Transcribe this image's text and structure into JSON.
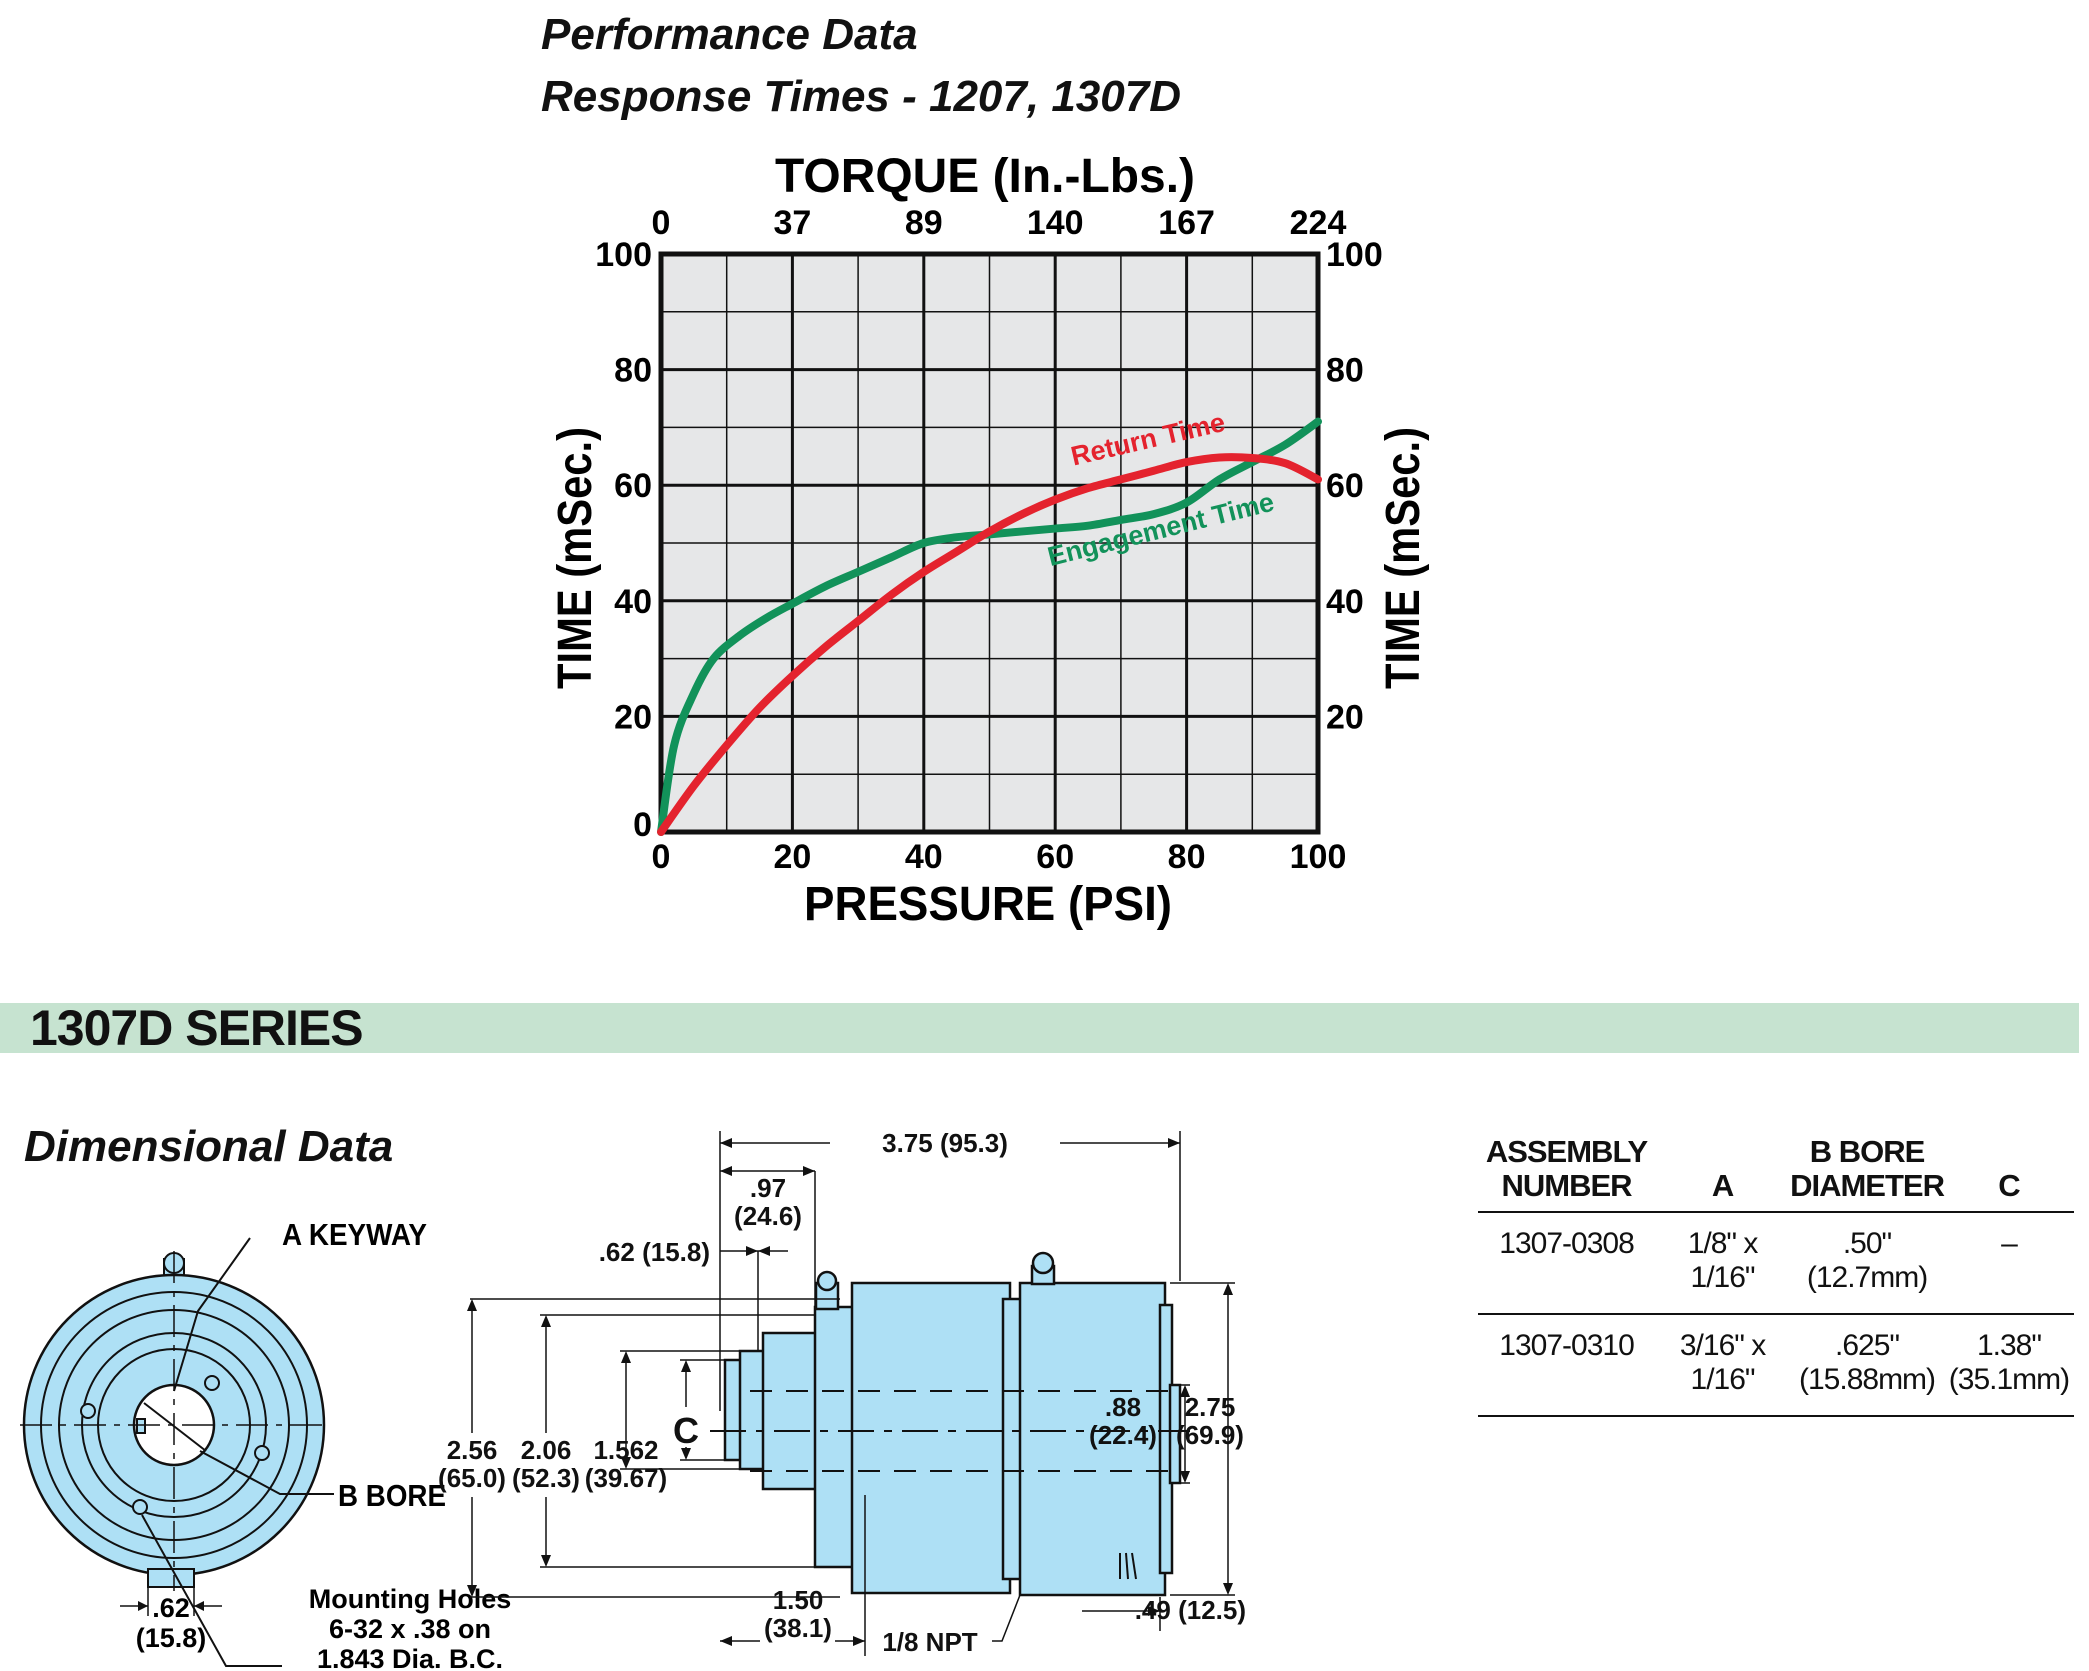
{
  "performance": {
    "title_line1": "Performance Data",
    "title_line2": "Response Times - 1207, 1307D"
  },
  "chart_data": {
    "type": "line",
    "top_axis_label": "TORQUE (In.-Lbs.)",
    "top_ticks": [
      "0",
      "37",
      "89",
      "140",
      "167",
      "224"
    ],
    "xlabel": "PRESSURE (PSI)",
    "ylabel": "TIME (mSec.)",
    "ylabel_right": "TIME (mSec.)",
    "xlim": [
      0,
      100
    ],
    "ylim": [
      0,
      100
    ],
    "x_ticks": [
      "0",
      "20",
      "40",
      "60",
      "80",
      "100"
    ],
    "y_ticks": [
      "0",
      "20",
      "40",
      "60",
      "80",
      "100"
    ],
    "y_ticks_right": [
      "20",
      "40",
      "60",
      "80",
      "100"
    ],
    "grid": true,
    "series": [
      {
        "name": "Engagement Time",
        "color": "#12925a",
        "x": [
          0,
          2,
          5,
          8,
          12,
          16,
          20,
          25,
          30,
          35,
          40,
          45,
          50,
          55,
          60,
          65,
          70,
          75,
          80,
          85,
          90,
          95,
          100
        ],
        "y": [
          0,
          15,
          24,
          30,
          34,
          37,
          39.5,
          42.5,
          45,
          47.5,
          50,
          51,
          51.5,
          52,
          52.5,
          53,
          54,
          55,
          57,
          61,
          64,
          67,
          71
        ]
      },
      {
        "name": "Return Time",
        "color": "#e4232e",
        "x": [
          0,
          5,
          10,
          15,
          20,
          25,
          30,
          35,
          40,
          45,
          50,
          55,
          60,
          65,
          70,
          75,
          80,
          85,
          90,
          95,
          100
        ],
        "y": [
          0,
          8,
          15,
          21.5,
          27,
          32,
          36.5,
          41,
          45,
          48.5,
          52,
          55,
          57.5,
          59.5,
          61,
          62.5,
          64,
          64.8,
          64.7,
          63.8,
          61
        ]
      }
    ]
  },
  "series_band": {
    "label": "1307D SERIES"
  },
  "dimensional": {
    "title": "Dimensional Data",
    "front_view": {
      "a_keyway": "A KEYWAY",
      "b_bore": "B BORE",
      "width_in": ".62",
      "width_mm": "(15.8)",
      "mount_line1": "Mounting Holes",
      "mount_line2": "6-32 x .38 on",
      "mount_line3": "1.843 Dia. B.C."
    },
    "side_view": {
      "overall_length": "3.75 (95.3)",
      "d097_in": ".97",
      "d097_mm": "(24.6)",
      "d062": ".62 (15.8)",
      "d256_in": "2.56",
      "d256_mm": "(65.0)",
      "d206_in": "2.06",
      "d206_mm": "(52.3)",
      "d1562_in": "1.562",
      "d1562_mm": "(39.67)",
      "c_label": "C",
      "d088_in": ".88",
      "d088_mm": "(22.4)",
      "d275_in": "2.75",
      "d275_mm": "(69.9)",
      "d150_in": "1.50",
      "d150_mm": "(38.1)",
      "npt": "1/8 NPT",
      "d049": ".49 (12.5)"
    }
  },
  "table": {
    "headers": {
      "assembly_line1": "ASSEMBLY",
      "assembly_line2": "NUMBER",
      "a": "A",
      "bore_line1": "B BORE",
      "bore_line2": "DIAMETER",
      "c": "C"
    },
    "rows": [
      {
        "assembly": "1307-0308",
        "a": "1/8\" x 1/16\"",
        "bore_in": ".50\"",
        "bore_mm": "(12.7mm)",
        "c_in": "–",
        "c_mm": ""
      },
      {
        "assembly": "1307-0310",
        "a": "3/16\" x 1/16\"",
        "bore_in": ".625\"",
        "bore_mm": "(15.88mm)",
        "c_in": "1.38\"",
        "c_mm": "(35.1mm)"
      }
    ]
  }
}
